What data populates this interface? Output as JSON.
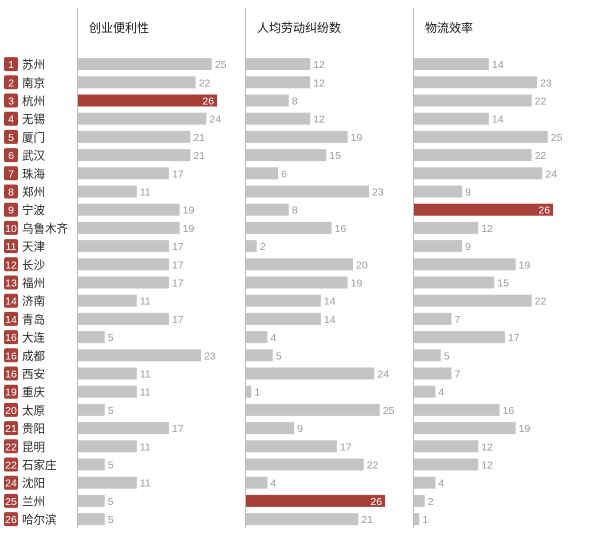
{
  "chart_data": {
    "type": "bar",
    "title": "",
    "columns": [
      "创业便利性",
      "人均劳动纠纷数",
      "物流效率"
    ],
    "rows": [
      {
        "rank": "1",
        "city": "苏州",
        "values": [
          25,
          12,
          14
        ]
      },
      {
        "rank": "2",
        "city": "南京",
        "values": [
          22,
          12,
          23
        ]
      },
      {
        "rank": "3",
        "city": "杭州",
        "values": [
          26,
          8,
          22
        ]
      },
      {
        "rank": "4",
        "city": "无锡",
        "values": [
          24,
          12,
          14
        ]
      },
      {
        "rank": "5",
        "city": "厦门",
        "values": [
          21,
          19,
          25
        ]
      },
      {
        "rank": "6",
        "city": "武汉",
        "values": [
          21,
          15,
          22
        ]
      },
      {
        "rank": "7",
        "city": "珠海",
        "values": [
          17,
          6,
          24
        ]
      },
      {
        "rank": "8",
        "city": "郑州",
        "values": [
          11,
          23,
          9
        ]
      },
      {
        "rank": "9",
        "city": "宁波",
        "values": [
          19,
          8,
          26
        ]
      },
      {
        "rank": "10",
        "city": "乌鲁木齐",
        "values": [
          19,
          16,
          12
        ]
      },
      {
        "rank": "11",
        "city": "天津",
        "values": [
          17,
          2,
          9
        ]
      },
      {
        "rank": "12",
        "city": "长沙",
        "values": [
          17,
          20,
          19
        ]
      },
      {
        "rank": "13",
        "city": "福州",
        "values": [
          17,
          19,
          15
        ]
      },
      {
        "rank": "14",
        "city": "济南",
        "values": [
          11,
          14,
          22
        ]
      },
      {
        "rank": "14",
        "city": "青岛",
        "values": [
          17,
          14,
          7
        ]
      },
      {
        "rank": "16",
        "city": "大连",
        "values": [
          5,
          4,
          17
        ]
      },
      {
        "rank": "16",
        "city": "成都",
        "values": [
          23,
          5,
          5
        ]
      },
      {
        "rank": "16",
        "city": "西安",
        "values": [
          11,
          24,
          7
        ]
      },
      {
        "rank": "19",
        "city": "重庆",
        "values": [
          11,
          1,
          4
        ]
      },
      {
        "rank": "20",
        "city": "太原",
        "values": [
          5,
          25,
          16
        ]
      },
      {
        "rank": "21",
        "city": "贵阳",
        "values": [
          17,
          9,
          19
        ]
      },
      {
        "rank": "22",
        "city": "昆明",
        "values": [
          11,
          17,
          12
        ]
      },
      {
        "rank": "22",
        "city": "石家庄",
        "values": [
          5,
          22,
          12
        ]
      },
      {
        "rank": "24",
        "city": "沈阳",
        "values": [
          11,
          4,
          4
        ]
      },
      {
        "rank": "25",
        "city": "兰州",
        "values": [
          5,
          26,
          2
        ]
      },
      {
        "rank": "26",
        "city": "哈尔滨",
        "values": [
          5,
          21,
          1
        ]
      }
    ],
    "max_value": 26,
    "colors": {
      "bar": "#c4c4c4",
      "highlight": "#a8403a",
      "rank_badge": "#a8403a",
      "value_label": "#9a9a9a",
      "separator": "#bdbdbd"
    }
  }
}
